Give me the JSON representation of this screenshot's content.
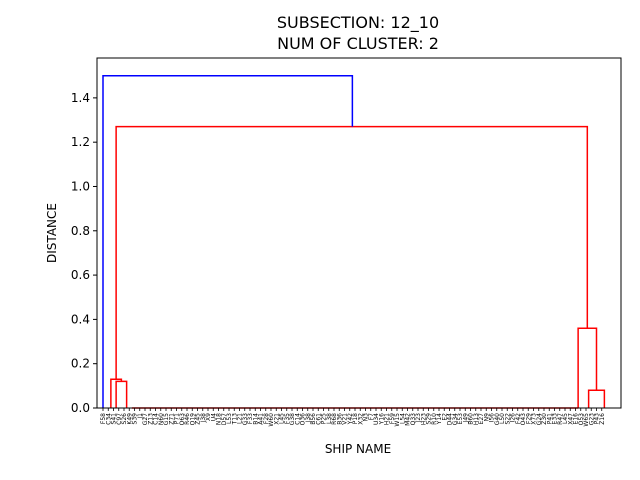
{
  "chart_data": {
    "type": "dendrogram",
    "title_lines": [
      "SUBSECTION: 12_10",
      "NUM OF CLUSTER: 2"
    ],
    "xlabel": "SHIP NAME",
    "ylabel": "DISTANCE",
    "ylim": [
      0,
      1.58
    ],
    "yticks": [
      "0.0",
      "0.2",
      "0.4",
      "0.6",
      "0.8",
      "1.0",
      "1.2",
      "1.4"
    ],
    "ytick_values": [
      0.0,
      0.2,
      0.4,
      0.6,
      0.8,
      1.0,
      1.2,
      1.4
    ],
    "colors": {
      "above_threshold": "#0000ff",
      "cluster": "#ff0000"
    },
    "leaves": [
      "F58",
      "C34",
      "S41",
      "C97",
      "S26",
      "K49",
      "S39",
      "J1",
      "G27",
      "Z13",
      "C14",
      "N60",
      "G15",
      "Z71",
      "P71",
      "O63",
      "R46",
      "O19",
      "Z45",
      "J38",
      "X9",
      "U4",
      "N18",
      "D57",
      "L53",
      "T13",
      "L21",
      "G33",
      "F33",
      "B14",
      "A41",
      "F28",
      "W60",
      "X21",
      "L45",
      "F35",
      "G38",
      "C14",
      "O36",
      "J38",
      "B56",
      "C61",
      "P25",
      "L38",
      "R68",
      "B36",
      "V21",
      "Y42",
      "P18",
      "X32",
      "N3",
      "F7",
      "U34",
      "Y16",
      "H21",
      "F59",
      "W15",
      "L54",
      "M42",
      "Q33",
      "J23",
      "H23",
      "S29",
      "R10",
      "Y14",
      "E2",
      "D44",
      "G34",
      "E53",
      "J49",
      "B60",
      "H13",
      "E27",
      "N9",
      "I56",
      "G40",
      "L50",
      "S22",
      "I26",
      "F42",
      "O43",
      "F29",
      "X73",
      "G24",
      "Z30",
      "P41",
      "E33",
      "R47",
      "L45",
      "X47",
      "E16",
      "O53",
      "W65",
      "G23",
      "P43",
      "Z16"
    ],
    "links": [
      {
        "id": "L1",
        "color": "cluster",
        "height": 0.0,
        "from": 5.5,
        "to": 90.5,
        "base_left": 0.0,
        "base_right": 0.0
      },
      {
        "id": "L2",
        "color": "cluster",
        "height": 0.12,
        "from": 2.5,
        "to": 4.5,
        "base_left": 0.0,
        "base_right": 0.0
      },
      {
        "id": "L3",
        "color": "cluster",
        "height": 0.13,
        "from": 1.5,
        "to": 3.5,
        "base_left": 0.0,
        "base_right": 0.12
      },
      {
        "id": "L4",
        "color": "cluster",
        "height": 0.08,
        "from": 92.5,
        "to": 95.5,
        "base_left": 0.0,
        "base_right": 0.0
      },
      {
        "id": "L5",
        "color": "cluster",
        "height": 0.36,
        "from": 90.5,
        "to": 94.0,
        "base_left": 0.0,
        "base_right": 0.08
      },
      {
        "id": "L6",
        "color": "cluster",
        "height": 1.27,
        "from": 2.5,
        "to": 92.25,
        "base_left": 0.13,
        "base_right": 0.36
      },
      {
        "id": "L7",
        "color": "above_threshold",
        "height": 1.5,
        "from": 0.0,
        "to": 47.5,
        "base_left": 0.0,
        "base_right": 1.27
      }
    ]
  }
}
